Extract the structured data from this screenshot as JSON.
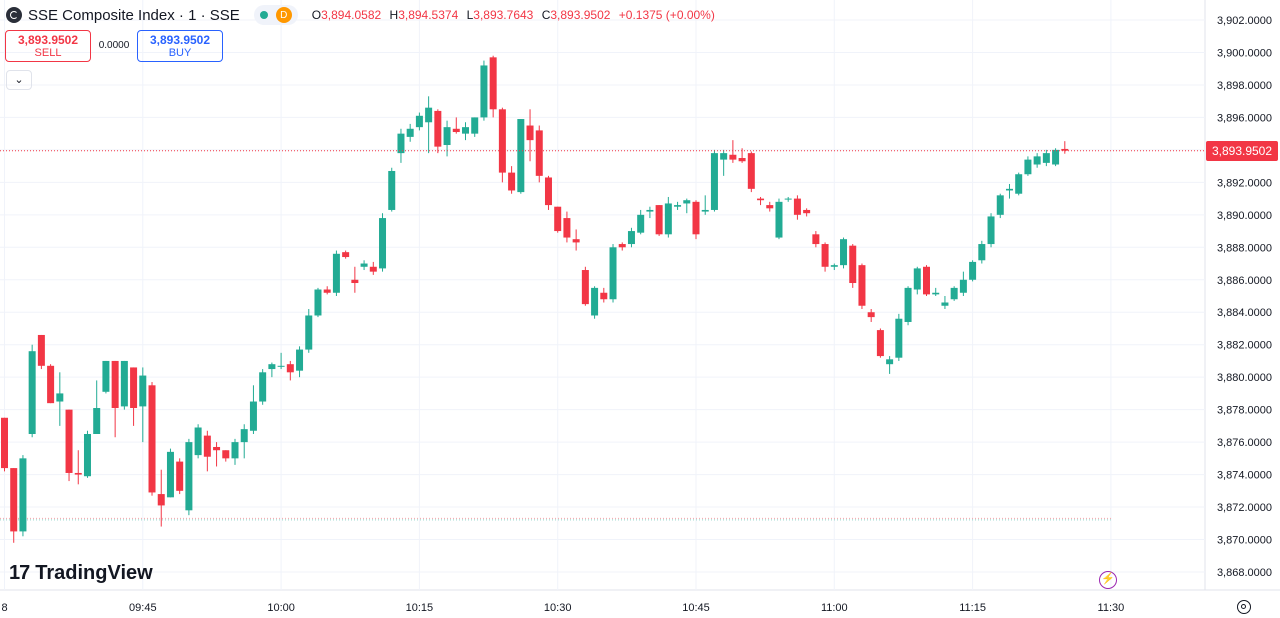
{
  "legend": {
    "title": "SSE Composite Index · 1 · SSE",
    "badge_letter": "D",
    "ohlc": [
      {
        "key": "O",
        "value": "3,894.0582"
      },
      {
        "key": "H",
        "value": "3,894.5374"
      },
      {
        "key": "L",
        "value": "3,893.7643"
      },
      {
        "key": "C",
        "value": "3,893.9502"
      }
    ],
    "change": "+0.1375 (+0.00%)"
  },
  "trade": {
    "sell_price": "3,893.9502",
    "sell_label": "SELL",
    "spread": "0.0000",
    "buy_price": "3,893.9502",
    "buy_label": "BUY"
  },
  "last_price_label": "3,893.9502",
  "brand": "TradingView",
  "colors": {
    "up": "#22ab94",
    "down": "#f23645"
  },
  "icons": [
    "symbol-icon",
    "chevron-down-icon",
    "flash-icon",
    "settings-icon"
  ],
  "chart_data": {
    "type": "candlestick",
    "interval_minutes": 1,
    "ylim": [
      3867.0,
      3903.5
    ],
    "y_ticks": [
      "3,868.0000",
      "3,870.0000",
      "3,872.0000",
      "3,874.0000",
      "3,876.0000",
      "3,878.0000",
      "3,880.0000",
      "3,882.0000",
      "3,884.0000",
      "3,886.0000",
      "3,888.0000",
      "3,890.0000",
      "3,892.0000",
      "3,894.0000",
      "3,896.0000",
      "3,898.0000",
      "3,900.0000",
      "3,902.0000"
    ],
    "x_ticks": [
      {
        "label": "8",
        "time": "09:30"
      },
      {
        "label": "09:45",
        "time": "09:45"
      },
      {
        "label": "10:00",
        "time": "10:00"
      },
      {
        "label": "10:15",
        "time": "10:15"
      },
      {
        "label": "10:30",
        "time": "10:30"
      },
      {
        "label": "10:45",
        "time": "10:45"
      },
      {
        "label": "11:00",
        "time": "11:00"
      },
      {
        "label": "11:15",
        "time": "11:15"
      },
      {
        "label": "11:30",
        "time": "11:30"
      }
    ],
    "last_price": 3893.9502,
    "reference_price": 3871.3,
    "grid": true,
    "candles": [
      [
        3877.5,
        3877.5,
        3874.2,
        3874.4
      ],
      [
        3874.4,
        3874.4,
        3869.8,
        3870.5
      ],
      [
        3870.5,
        3875.2,
        3870.2,
        3875.0
      ],
      [
        3876.5,
        3882.0,
        3876.3,
        3881.6
      ],
      [
        3882.6,
        3882.6,
        3880.5,
        3880.7
      ],
      [
        3880.7,
        3880.8,
        3878.4,
        3878.4
      ],
      [
        3878.5,
        3880.3,
        3877.0,
        3879.0
      ],
      [
        3878.0,
        3878.0,
        3873.6,
        3874.1
      ],
      [
        3874.1,
        3875.5,
        3873.4,
        3874.0
      ],
      [
        3873.9,
        3876.7,
        3873.8,
        3876.5
      ],
      [
        3876.5,
        3879.8,
        3876.5,
        3878.1
      ],
      [
        3879.1,
        3881.0,
        3879.0,
        3881.0
      ],
      [
        3881.0,
        3881.0,
        3876.3,
        3878.1
      ],
      [
        3878.2,
        3881.0,
        3878.0,
        3881.0
      ],
      [
        3880.6,
        3880.6,
        3877.0,
        3878.1
      ],
      [
        3878.2,
        3880.6,
        3876.0,
        3880.1
      ],
      [
        3879.5,
        3879.7,
        3872.7,
        3872.9
      ],
      [
        3872.8,
        3874.3,
        3870.8,
        3872.1
      ],
      [
        3872.6,
        3875.6,
        3872.6,
        3875.4
      ],
      [
        3874.8,
        3875.0,
        3872.8,
        3873.0
      ],
      [
        3871.8,
        3876.2,
        3871.5,
        3876.0
      ],
      [
        3875.2,
        3877.1,
        3875.0,
        3876.9
      ],
      [
        3876.4,
        3876.7,
        3874.2,
        3875.1
      ],
      [
        3875.7,
        3876.0,
        3874.5,
        3875.5
      ],
      [
        3875.5,
        3875.5,
        3874.8,
        3875.0
      ],
      [
        3875.0,
        3876.2,
        3874.6,
        3876.0
      ],
      [
        3876.0,
        3877.1,
        3875.0,
        3876.8
      ],
      [
        3876.7,
        3879.5,
        3876.5,
        3878.5
      ],
      [
        3878.5,
        3880.5,
        3878.3,
        3880.3
      ],
      [
        3880.5,
        3880.9,
        3880.0,
        3880.8
      ],
      [
        3880.7,
        3881.5,
        3880.5,
        3880.7
      ],
      [
        3880.8,
        3881.0,
        3879.8,
        3880.3
      ],
      [
        3880.4,
        3881.9,
        3880.0,
        3881.7
      ],
      [
        3881.7,
        3884.2,
        3881.5,
        3883.8
      ],
      [
        3883.8,
        3885.5,
        3883.7,
        3885.4
      ],
      [
        3885.4,
        3885.6,
        3885.1,
        3885.2
      ],
      [
        3885.2,
        3887.8,
        3885.0,
        3887.6
      ],
      [
        3887.7,
        3887.8,
        3887.3,
        3887.4
      ],
      [
        3886.0,
        3886.8,
        3885.2,
        3885.8
      ],
      [
        3886.8,
        3887.2,
        3886.6,
        3887.0
      ],
      [
        3886.8,
        3887.1,
        3886.3,
        3886.5
      ],
      [
        3886.7,
        3890.1,
        3886.5,
        3889.8
      ],
      [
        3890.3,
        3892.9,
        3890.2,
        3892.7
      ],
      [
        3893.8,
        3895.3,
        3893.2,
        3895.0
      ],
      [
        3894.8,
        3895.6,
        3894.5,
        3895.3
      ],
      [
        3895.4,
        3896.3,
        3895.2,
        3896.1
      ],
      [
        3895.7,
        3897.3,
        3893.8,
        3896.6
      ],
      [
        3896.4,
        3896.5,
        3893.8,
        3894.2
      ],
      [
        3894.3,
        3895.8,
        3893.6,
        3895.4
      ],
      [
        3895.3,
        3896.0,
        3895.0,
        3895.1
      ],
      [
        3895.0,
        3895.7,
        3894.6,
        3895.4
      ],
      [
        3895.0,
        3896.0,
        3894.8,
        3896.0
      ],
      [
        3896.0,
        3899.5,
        3895.8,
        3899.2
      ],
      [
        3899.7,
        3899.8,
        3896.0,
        3896.5
      ],
      [
        3896.5,
        3896.6,
        3892.0,
        3892.6
      ],
      [
        3892.6,
        3893.0,
        3891.3,
        3891.5
      ],
      [
        3891.4,
        3895.9,
        3891.3,
        3895.9
      ],
      [
        3895.5,
        3896.5,
        3893.3,
        3894.6
      ],
      [
        3895.2,
        3895.5,
        3892.0,
        3892.4
      ],
      [
        3892.3,
        3892.4,
        3890.3,
        3890.6
      ],
      [
        3890.5,
        3890.5,
        3888.9,
        3889.0
      ],
      [
        3889.8,
        3890.2,
        3888.3,
        3888.6
      ],
      [
        3888.5,
        3889.1,
        3887.8,
        3888.3
      ],
      [
        3886.6,
        3886.8,
        3884.4,
        3884.5
      ],
      [
        3883.8,
        3885.6,
        3883.6,
        3885.5
      ],
      [
        3885.2,
        3885.5,
        3884.6,
        3884.8
      ],
      [
        3884.8,
        3888.2,
        3884.6,
        3888.0
      ],
      [
        3888.2,
        3888.3,
        3887.8,
        3888.0
      ],
      [
        3888.2,
        3889.2,
        3888.0,
        3889.0
      ],
      [
        3888.9,
        3890.3,
        3888.8,
        3890.0
      ],
      [
        3890.2,
        3890.5,
        3889.8,
        3890.3
      ],
      [
        3890.6,
        3890.6,
        3888.7,
        3888.8
      ],
      [
        3888.8,
        3891.1,
        3888.6,
        3890.7
      ],
      [
        3890.5,
        3890.8,
        3890.3,
        3890.6
      ],
      [
        3890.7,
        3891.0,
        3890.1,
        3890.9
      ],
      [
        3890.8,
        3890.9,
        3888.5,
        3888.8
      ],
      [
        3890.2,
        3891.2,
        3890.0,
        3890.3
      ],
      [
        3890.3,
        3894.0,
        3890.2,
        3893.8
      ],
      [
        3893.4,
        3894.0,
        3892.4,
        3893.8
      ],
      [
        3893.7,
        3894.6,
        3893.2,
        3893.4
      ],
      [
        3893.5,
        3894.1,
        3893.2,
        3893.3
      ],
      [
        3893.8,
        3893.9,
        3891.4,
        3891.6
      ],
      [
        3891.0,
        3891.1,
        3890.6,
        3890.9
      ],
      [
        3890.6,
        3890.8,
        3890.2,
        3890.4
      ],
      [
        3888.6,
        3891.0,
        3888.5,
        3890.8
      ],
      [
        3891.0,
        3891.1,
        3890.8,
        3891.0
      ],
      [
        3891.0,
        3891.2,
        3889.7,
        3890.0
      ],
      [
        3890.3,
        3890.4,
        3889.9,
        3890.1
      ],
      [
        3888.8,
        3889.0,
        3888.0,
        3888.2
      ],
      [
        3888.2,
        3888.3,
        3886.5,
        3886.8
      ],
      [
        3886.8,
        3887.0,
        3886.6,
        3886.9
      ],
      [
        3886.9,
        3888.6,
        3886.7,
        3888.5
      ],
      [
        3888.1,
        3888.2,
        3885.5,
        3885.8
      ],
      [
        3886.9,
        3887.0,
        3884.2,
        3884.4
      ],
      [
        3884.0,
        3884.2,
        3883.4,
        3883.7
      ],
      [
        3882.9,
        3883.0,
        3881.2,
        3881.3
      ],
      [
        3880.8,
        3881.3,
        3880.2,
        3881.1
      ],
      [
        3881.2,
        3883.9,
        3881.0,
        3883.6
      ],
      [
        3883.4,
        3885.6,
        3883.2,
        3885.5
      ],
      [
        3885.4,
        3886.8,
        3885.1,
        3886.7
      ],
      [
        3886.8,
        3886.9,
        3885.0,
        3885.1
      ],
      [
        3885.1,
        3885.5,
        3885.0,
        3885.2
      ],
      [
        3884.4,
        3885.0,
        3884.2,
        3884.6
      ],
      [
        3884.8,
        3885.6,
        3884.7,
        3885.5
      ],
      [
        3885.2,
        3886.5,
        3885.0,
        3886.0
      ],
      [
        3886.0,
        3887.2,
        3885.9,
        3887.1
      ],
      [
        3887.2,
        3888.4,
        3887.0,
        3888.2
      ],
      [
        3888.2,
        3890.1,
        3888.0,
        3889.9
      ],
      [
        3890.0,
        3891.3,
        3889.8,
        3891.2
      ],
      [
        3891.5,
        3891.9,
        3891.0,
        3891.6
      ],
      [
        3891.3,
        3892.6,
        3891.2,
        3892.5
      ],
      [
        3892.5,
        3893.6,
        3892.4,
        3893.4
      ],
      [
        3893.1,
        3893.8,
        3892.9,
        3893.6
      ],
      [
        3893.2,
        3894.0,
        3893.0,
        3893.8
      ],
      [
        3893.1,
        3894.1,
        3893.0,
        3894.0
      ],
      [
        3894.0582,
        3894.5374,
        3893.7643,
        3893.9502
      ]
    ]
  }
}
